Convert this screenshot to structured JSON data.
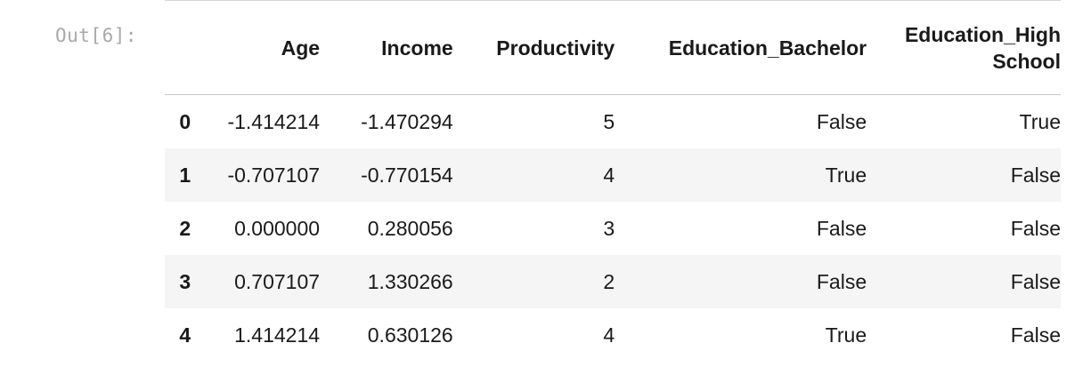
{
  "cell": {
    "prompt": "Out[6]:"
  },
  "table": {
    "columns": [
      "Age",
      "Income",
      "Productivity",
      "Education_Bachelor",
      "Education_High School"
    ],
    "hs_header_line1": "Education_High",
    "hs_header_line2": "School",
    "rows": [
      {
        "index": "0",
        "age": "-1.414214",
        "income": "-1.470294",
        "productivity": "5",
        "bachelor": "False",
        "high_school": "True"
      },
      {
        "index": "1",
        "age": "-0.707107",
        "income": "-0.770154",
        "productivity": "4",
        "bachelor": "True",
        "high_school": "False"
      },
      {
        "index": "2",
        "age": "0.000000",
        "income": "0.280056",
        "productivity": "3",
        "bachelor": "False",
        "high_school": "False"
      },
      {
        "index": "3",
        "age": "0.707107",
        "income": "1.330266",
        "productivity": "2",
        "bachelor": "False",
        "high_school": "False"
      },
      {
        "index": "4",
        "age": "1.414214",
        "income": "0.630126",
        "productivity": "4",
        "bachelor": "True",
        "high_school": "False"
      }
    ]
  }
}
